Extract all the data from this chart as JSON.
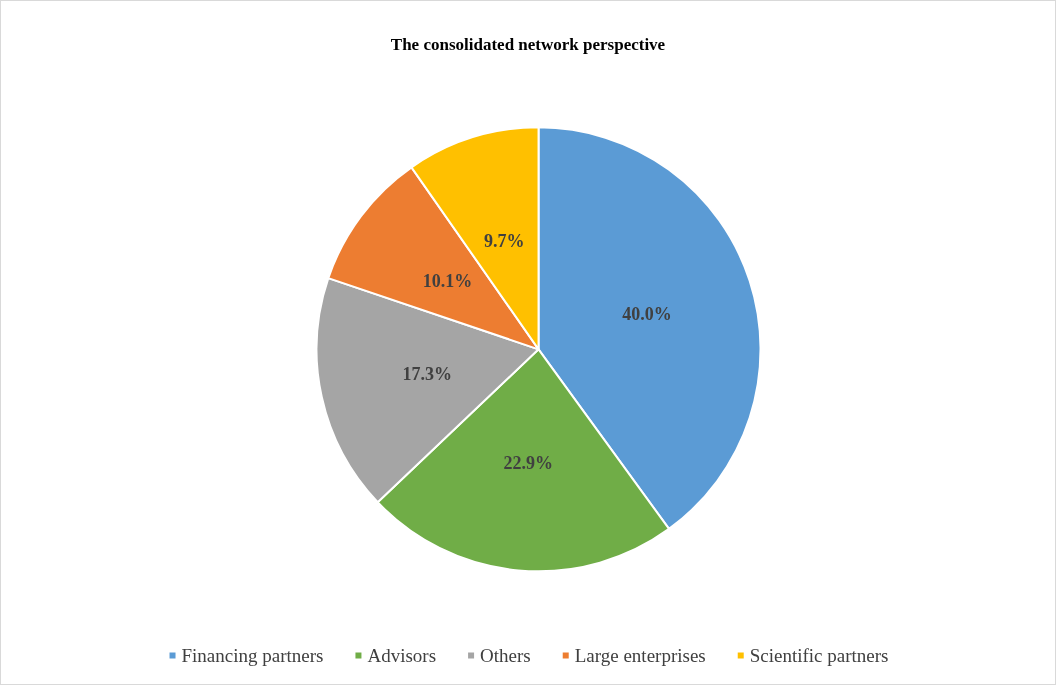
{
  "chart_data": {
    "type": "pie",
    "title": "The consolidated network perspective",
    "categories": [
      "Financing partners",
      "Advisors",
      "Others",
      "Large enterprises",
      "Scientific partners"
    ],
    "values": [
      40.0,
      22.9,
      17.3,
      10.1,
      9.7
    ],
    "colors": [
      "#5b9bd5",
      "#70ad47",
      "#a5a5a5",
      "#ed7d31",
      "#ffc000"
    ],
    "value_labels": [
      "40.0%",
      "22.9%",
      "17.3%",
      "10.1%",
      "9.7%"
    ],
    "legend": "bottom"
  }
}
